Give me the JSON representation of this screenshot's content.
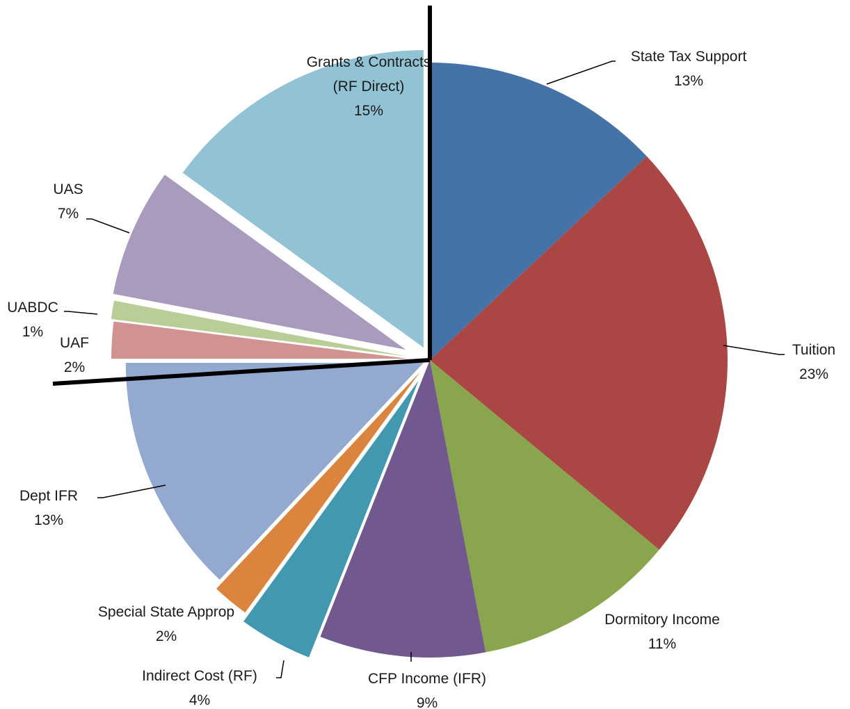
{
  "chart_data": {
    "type": "pie",
    "title": "",
    "slices": [
      {
        "name": "State Tax Support",
        "label_lines": [
          "State Tax Support",
          "13%"
        ],
        "value": 13,
        "color": "#4572A7"
      },
      {
        "name": "Tuition",
        "label_lines": [
          "Tuition",
          "23%"
        ],
        "value": 23,
        "color": "#AA4643"
      },
      {
        "name": "Dormitory Income",
        "label_lines": [
          "Dormitory Income",
          "11%"
        ],
        "value": 11,
        "color": "#89A54E"
      },
      {
        "name": "CFP Income (IFR)",
        "label_lines": [
          "CFP Income  (IFR)",
          "9%"
        ],
        "value": 9,
        "color": "#71588F"
      },
      {
        "name": "Indirect Cost (RF)",
        "label_lines": [
          "Indirect Cost (RF)",
          "4%"
        ],
        "value": 4,
        "color": "#4198AF"
      },
      {
        "name": "Special State Approp",
        "label_lines": [
          "Special State Approp",
          "2%"
        ],
        "value": 2,
        "color": "#DB843D"
      },
      {
        "name": "Dept IFR",
        "label_lines": [
          "Dept IFR",
          "13%"
        ],
        "value": 13,
        "color": "#93A9CF"
      },
      {
        "name": "UAF",
        "label_lines": [
          "UAF",
          "2%"
        ],
        "value": 2,
        "color": "#D19392"
      },
      {
        "name": "UABDC",
        "label_lines": [
          "UABDC",
          "1%"
        ],
        "value": 1,
        "color": "#B9CD96"
      },
      {
        "name": "UAS",
        "label_lines": [
          "UAS",
          "7%"
        ],
        "value": 7,
        "color": "#A99BBD"
      },
      {
        "name": "Grants & Contracts (RF Direct)",
        "label_lines": [
          "Grants & Contracts",
          "(RF Direct)",
          "15%"
        ],
        "value": 15,
        "color": "#92C3D4"
      }
    ]
  }
}
